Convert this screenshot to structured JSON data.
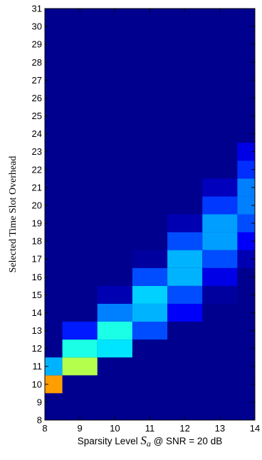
{
  "chart_data": {
    "type": "heatmap",
    "xlabel_prefix": "Sparsity Level ",
    "xlabel_symbol": "S",
    "xlabel_subscript": "a",
    "xlabel_suffix": " @ SNR = 20 dB",
    "ylabel": "Selected Time Slot Overhead",
    "x_ticks": [
      8,
      9,
      10,
      11,
      12,
      13,
      14
    ],
    "y_ticks": [
      8,
      9,
      10,
      11,
      12,
      13,
      14,
      15,
      16,
      17,
      18,
      19,
      20,
      21,
      22,
      23,
      24,
      25,
      26,
      27,
      28,
      29,
      30,
      31
    ],
    "xlim": [
      8,
      14
    ],
    "ylim": [
      8,
      31
    ],
    "x": [
      8,
      9,
      10,
      11,
      12,
      13,
      14
    ],
    "background_color": "#00008f",
    "colormap": "jet",
    "cells": [
      {
        "x": 8,
        "y": 10,
        "value": 0.72
      },
      {
        "x": 8,
        "y": 11,
        "value": 0.3
      },
      {
        "x": 9,
        "y": 11,
        "value": 0.55
      },
      {
        "x": 9,
        "y": 12,
        "value": 0.4
      },
      {
        "x": 9,
        "y": 13,
        "value": 0.15
      },
      {
        "x": 10,
        "y": 12,
        "value": 0.35
      },
      {
        "x": 10,
        "y": 13,
        "value": 0.4
      },
      {
        "x": 10,
        "y": 14,
        "value": 0.25
      },
      {
        "x": 10,
        "y": 15,
        "value": 0.05
      },
      {
        "x": 11,
        "y": 13,
        "value": 0.2
      },
      {
        "x": 11,
        "y": 14,
        "value": 0.3
      },
      {
        "x": 11,
        "y": 15,
        "value": 0.33
      },
      {
        "x": 11,
        "y": 16,
        "value": 0.2
      },
      {
        "x": 11,
        "y": 17,
        "value": 0.03
      },
      {
        "x": 12,
        "y": 14,
        "value": 0.12
      },
      {
        "x": 12,
        "y": 15,
        "value": 0.2
      },
      {
        "x": 12,
        "y": 16,
        "value": 0.3
      },
      {
        "x": 12,
        "y": 17,
        "value": 0.3
      },
      {
        "x": 12,
        "y": 18,
        "value": 0.2
      },
      {
        "x": 12,
        "y": 19,
        "value": 0.05
      },
      {
        "x": 13,
        "y": 15,
        "value": 0.03
      },
      {
        "x": 13,
        "y": 16,
        "value": 0.1
      },
      {
        "x": 13,
        "y": 17,
        "value": 0.2
      },
      {
        "x": 13,
        "y": 18,
        "value": 0.28
      },
      {
        "x": 13,
        "y": 19,
        "value": 0.28
      },
      {
        "x": 13,
        "y": 20,
        "value": 0.18
      },
      {
        "x": 13,
        "y": 21,
        "value": 0.06
      },
      {
        "x": 14,
        "y": 17,
        "value": 0.05
      },
      {
        "x": 14,
        "y": 18,
        "value": 0.12
      },
      {
        "x": 14,
        "y": 19,
        "value": 0.2
      },
      {
        "x": 14,
        "y": 20,
        "value": 0.25
      },
      {
        "x": 14,
        "y": 21,
        "value": 0.25
      },
      {
        "x": 14,
        "y": 22,
        "value": 0.17
      },
      {
        "x": 14,
        "y": 23,
        "value": 0.1
      }
    ]
  }
}
